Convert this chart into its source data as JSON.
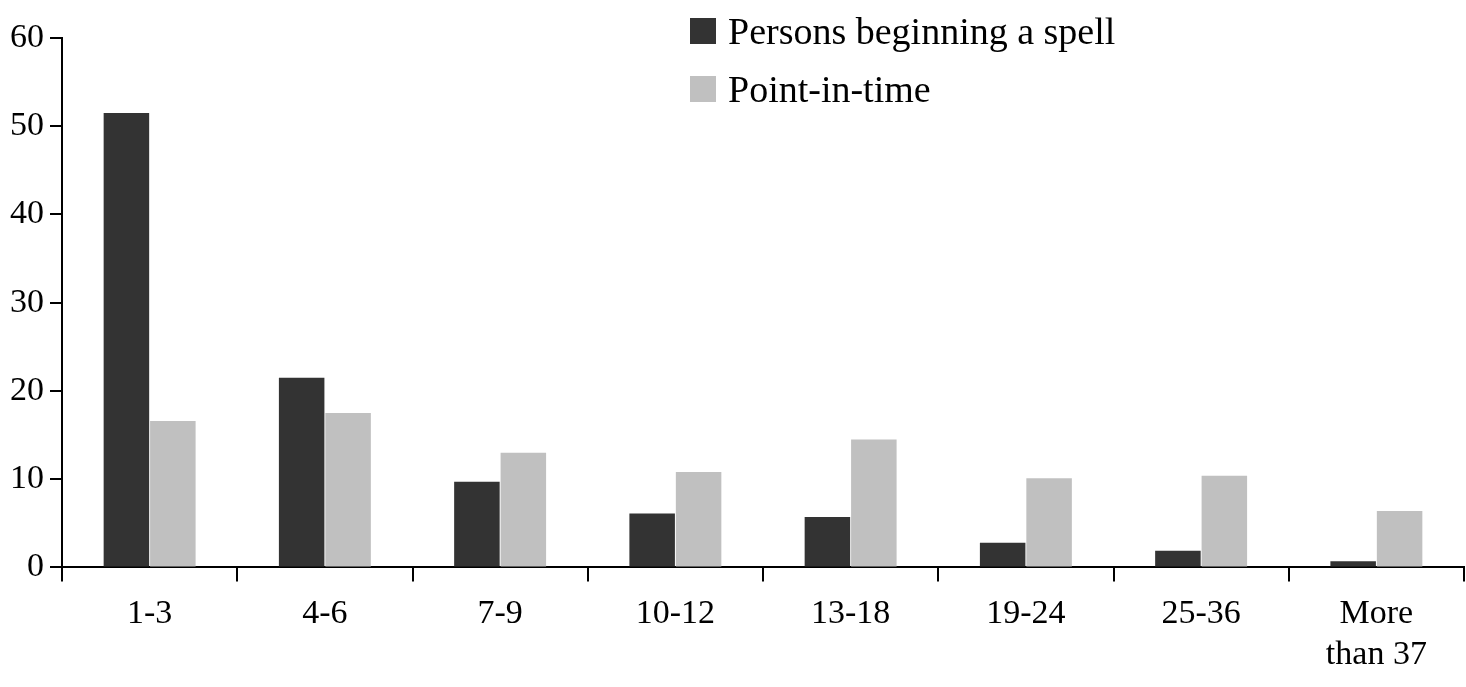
{
  "chart_data": {
    "type": "bar",
    "categories": [
      "1-3",
      "4-6",
      "7-9",
      "10-12",
      "13-18",
      "19-24",
      "25-36",
      "More than 37"
    ],
    "series": [
      {
        "name": "Persons beginning a spell",
        "color": "#333333",
        "values": [
          51.5,
          21.5,
          9.7,
          6.1,
          5.7,
          2.8,
          1.9,
          0.7
        ]
      },
      {
        "name": "Point-in-time",
        "color": "#c0c0c0",
        "values": [
          16.6,
          17.5,
          13.0,
          10.8,
          14.5,
          10.1,
          10.4,
          6.4
        ]
      }
    ],
    "ylim": [
      0,
      60
    ],
    "yticks": [
      0,
      10,
      20,
      30,
      40,
      50,
      60
    ],
    "grid": false,
    "legend": "top right"
  }
}
